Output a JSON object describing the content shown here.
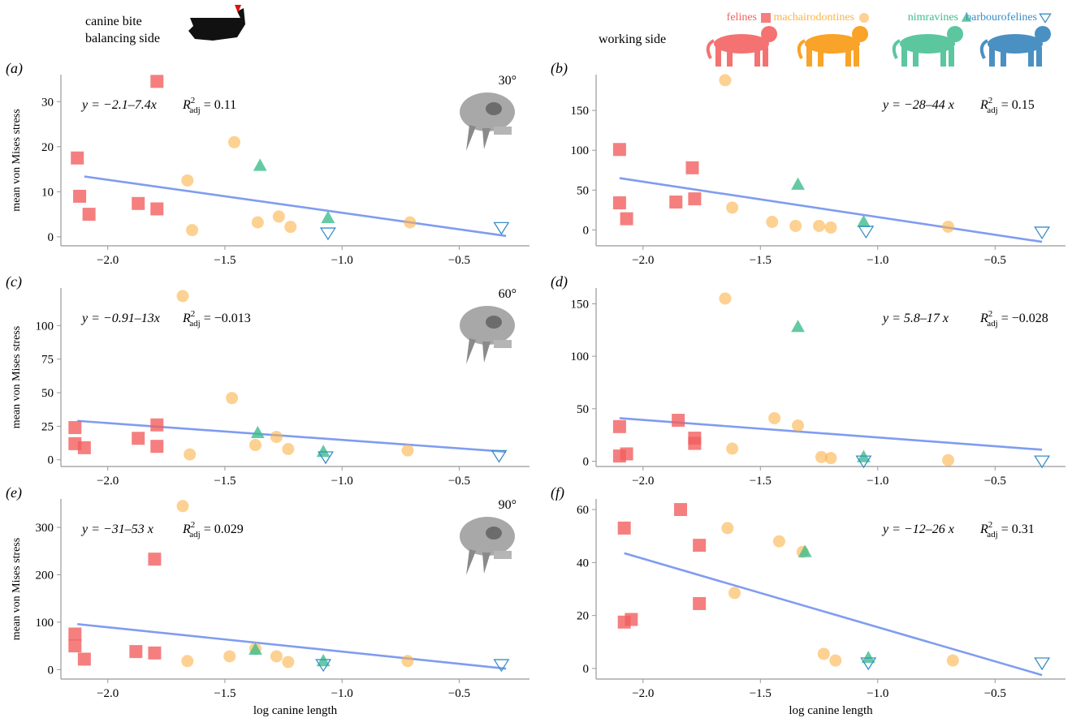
{
  "header": {
    "bite_line1": "canine bite",
    "bite_line2": "balancing side",
    "working_side": "working side",
    "legend": [
      {
        "name": "felines",
        "marker": "square",
        "color": "#f25f5f"
      },
      {
        "name": "machairodontines",
        "marker": "circle",
        "color": "#fbb347"
      },
      {
        "name": "nimravines",
        "marker": "triangle",
        "color": "#3dbd8d"
      },
      {
        "name": "barbourofelines",
        "marker": "triangle-down",
        "color": "#3b8ec4"
      }
    ]
  },
  "shared": {
    "xlabel": "log canine length",
    "ylabel": "mean von Mises stress",
    "xticks": [
      "−2.0",
      "−1.5",
      "−1.0",
      "−0.5"
    ]
  },
  "chart_data": [
    {
      "panel": "(a)",
      "type": "scatter",
      "angle": "30°",
      "eq": "y = −2.1–7.4x",
      "r2": "= 0.11",
      "xlim": [
        -2.2,
        -0.2
      ],
      "ylim": [
        -2,
        36
      ],
      "yticks": [
        0,
        10,
        20,
        30
      ],
      "fit": [
        [
          -2.1,
          13.4
        ],
        [
          -0.3,
          0.2
        ]
      ],
      "series": [
        {
          "name": "felines",
          "marker": "square",
          "points": [
            [
              -2.13,
              17.5
            ],
            [
              -2.12,
              9
            ],
            [
              -2.08,
              5
            ],
            [
              -1.87,
              7.4
            ],
            [
              -1.79,
              6.2
            ],
            [
              -1.79,
              34.5
            ]
          ]
        },
        {
          "name": "machairodontines",
          "marker": "circle",
          "points": [
            [
              -1.66,
              12.5
            ],
            [
              -1.64,
              1.5
            ],
            [
              -1.46,
              21
            ],
            [
              -1.36,
              3.2
            ],
            [
              -1.27,
              4.5
            ],
            [
              -1.22,
              2.2
            ],
            [
              -0.71,
              3.2
            ]
          ]
        },
        {
          "name": "nimravines",
          "marker": "triangle",
          "points": [
            [
              -1.35,
              15.8
            ],
            [
              -1.06,
              4.2
            ]
          ]
        },
        {
          "name": "barbourofelines",
          "marker": "triangle-down",
          "points": [
            [
              -1.06,
              0.8
            ],
            [
              -0.32,
              2.0
            ]
          ]
        }
      ]
    },
    {
      "panel": "(b)",
      "type": "scatter",
      "angle": "",
      "eq": "y = −28–44 x",
      "r2": "= 0.15",
      "xlim": [
        -2.2,
        -0.2
      ],
      "ylim": [
        -20,
        195
      ],
      "yticks": [
        0,
        50,
        100,
        150
      ],
      "fit": [
        [
          -2.1,
          65
        ],
        [
          -0.3,
          -15
        ]
      ],
      "series": [
        {
          "name": "felines",
          "marker": "square",
          "points": [
            [
              -2.1,
              101
            ],
            [
              -2.1,
              34
            ],
            [
              -2.07,
              14
            ],
            [
              -1.86,
              35
            ],
            [
              -1.79,
              78
            ],
            [
              -1.78,
              39
            ]
          ]
        },
        {
          "name": "machairodontines",
          "marker": "circle",
          "points": [
            [
              -1.65,
              188
            ],
            [
              -1.62,
              28
            ],
            [
              -1.45,
              10
            ],
            [
              -1.35,
              5
            ],
            [
              -1.25,
              5
            ],
            [
              -1.2,
              3
            ],
            [
              -0.7,
              4
            ]
          ]
        },
        {
          "name": "nimravines",
          "marker": "triangle",
          "points": [
            [
              -1.34,
              57
            ],
            [
              -1.06,
              10
            ]
          ]
        },
        {
          "name": "barbourofelines",
          "marker": "triangle-down",
          "points": [
            [
              -1.05,
              -2
            ],
            [
              -0.3,
              -3
            ]
          ]
        }
      ]
    },
    {
      "panel": "(c)",
      "type": "scatter",
      "angle": "60°",
      "eq": "y = −0.91–13x",
      "r2": "= −0.013",
      "xlim": [
        -2.2,
        -0.2
      ],
      "ylim": [
        -5,
        128
      ],
      "yticks": [
        0,
        25,
        50,
        75,
        100
      ],
      "fit": [
        [
          -2.13,
          29
        ],
        [
          -0.3,
          6
        ]
      ],
      "series": [
        {
          "name": "felines",
          "marker": "square",
          "points": [
            [
              -2.14,
              24
            ],
            [
              -2.14,
              12
            ],
            [
              -2.1,
              9
            ],
            [
              -1.87,
              16
            ],
            [
              -1.79,
              10
            ],
            [
              -1.79,
              26
            ]
          ]
        },
        {
          "name": "machairodontines",
          "marker": "circle",
          "points": [
            [
              -1.68,
              122
            ],
            [
              -1.65,
              4
            ],
            [
              -1.47,
              46
            ],
            [
              -1.37,
              11
            ],
            [
              -1.28,
              17
            ],
            [
              -1.23,
              8
            ],
            [
              -0.72,
              7
            ]
          ]
        },
        {
          "name": "nimravines",
          "marker": "triangle",
          "points": [
            [
              -1.36,
              20
            ],
            [
              -1.08,
              6
            ]
          ]
        },
        {
          "name": "barbourofelines",
          "marker": "triangle-down",
          "points": [
            [
              -1.07,
              2
            ],
            [
              -0.33,
              3
            ]
          ]
        }
      ]
    },
    {
      "panel": "(d)",
      "type": "scatter",
      "angle": "",
      "eq": "y = 5.8–17 x",
      "r2": "= −0.028",
      "xlim": [
        -2.2,
        -0.2
      ],
      "ylim": [
        -5,
        165
      ],
      "yticks": [
        0,
        50,
        100,
        150
      ],
      "fit": [
        [
          -2.1,
          41
        ],
        [
          -0.3,
          11
        ]
      ],
      "series": [
        {
          "name": "felines",
          "marker": "square",
          "points": [
            [
              -2.1,
              33
            ],
            [
              -2.1,
              5
            ],
            [
              -2.07,
              7
            ],
            [
              -1.85,
              39
            ],
            [
              -1.78,
              22
            ],
            [
              -1.78,
              17
            ]
          ]
        },
        {
          "name": "machairodontines",
          "marker": "circle",
          "points": [
            [
              -1.65,
              155
            ],
            [
              -1.62,
              12
            ],
            [
              -1.44,
              41
            ],
            [
              -1.34,
              34
            ],
            [
              -1.24,
              4
            ],
            [
              -1.2,
              3
            ],
            [
              -0.7,
              1
            ]
          ]
        },
        {
          "name": "nimravines",
          "marker": "triangle",
          "points": [
            [
              -1.34,
              128
            ],
            [
              -1.06,
              4
            ]
          ]
        },
        {
          "name": "barbourofelines",
          "marker": "triangle-down",
          "points": [
            [
              -1.06,
              0
            ],
            [
              -0.3,
              0
            ]
          ]
        }
      ]
    },
    {
      "panel": "(e)",
      "type": "scatter",
      "angle": "90°",
      "eq": "y = −31–53 x",
      "r2": "= 0.029",
      "xlim": [
        -2.2,
        -0.2
      ],
      "ylim": [
        -20,
        360
      ],
      "yticks": [
        0,
        100,
        200,
        300
      ],
      "fit": [
        [
          -2.13,
          96
        ],
        [
          -0.3,
          2
        ]
      ],
      "series": [
        {
          "name": "felines",
          "marker": "square",
          "points": [
            [
              -2.14,
              75
            ],
            [
              -2.14,
              50
            ],
            [
              -2.1,
              22
            ],
            [
              -1.88,
              38
            ],
            [
              -1.8,
              35
            ],
            [
              -1.8,
              233
            ]
          ]
        },
        {
          "name": "machairodontines",
          "marker": "circle",
          "points": [
            [
              -1.68,
              345
            ],
            [
              -1.66,
              18
            ],
            [
              -1.48,
              28
            ],
            [
              -1.37,
              44
            ],
            [
              -1.28,
              28
            ],
            [
              -1.23,
              16
            ],
            [
              -0.72,
              18
            ]
          ]
        },
        {
          "name": "nimravines",
          "marker": "triangle",
          "points": [
            [
              -1.37,
              42
            ],
            [
              -1.08,
              18
            ]
          ]
        },
        {
          "name": "barbourofelines",
          "marker": "triangle-down",
          "points": [
            [
              -1.08,
              10
            ],
            [
              -0.32,
              10
            ]
          ]
        }
      ]
    },
    {
      "panel": "(f)",
      "type": "scatter",
      "angle": "",
      "eq": "y = −12–26 x",
      "r2": "= 0.31",
      "xlim": [
        -2.2,
        -0.2
      ],
      "ylim": [
        -4,
        64
      ],
      "yticks": [
        0,
        20,
        40,
        60
      ],
      "fit": [
        [
          -2.08,
          43.5
        ],
        [
          -0.3,
          -2.5
        ]
      ],
      "series": [
        {
          "name": "felines",
          "marker": "square",
          "points": [
            [
              -2.08,
              53
            ],
            [
              -2.08,
              17.5
            ],
            [
              -2.05,
              18.5
            ],
            [
              -1.84,
              60
            ],
            [
              -1.76,
              46.5
            ],
            [
              -1.76,
              24.5
            ]
          ]
        },
        {
          "name": "machairodontines",
          "marker": "circle",
          "points": [
            [
              -1.64,
              53
            ],
            [
              -1.61,
              28.5
            ],
            [
              -1.42,
              48
            ],
            [
              -1.32,
              44
            ],
            [
              -1.23,
              5.5
            ],
            [
              -1.18,
              3
            ],
            [
              -0.68,
              3
            ]
          ]
        },
        {
          "name": "nimravines",
          "marker": "triangle",
          "points": [
            [
              -1.31,
              44
            ],
            [
              -1.04,
              4
            ]
          ]
        },
        {
          "name": "barbourofelines",
          "marker": "triangle-down",
          "points": [
            [
              -1.04,
              2
            ],
            [
              -0.3,
              2
            ]
          ]
        }
      ]
    }
  ]
}
